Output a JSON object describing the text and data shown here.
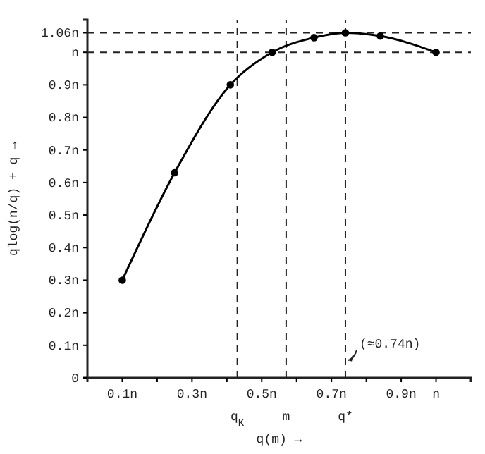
{
  "chart_data": {
    "type": "line",
    "xlabel": "q(m) →",
    "ylabel": "qlog(n/q) + q →",
    "x": [
      0.1,
      0.25,
      0.41,
      0.53,
      0.65,
      0.74,
      0.84,
      1.0
    ],
    "values": [
      0.3,
      0.63,
      0.9,
      1.0,
      1.045,
      1.06,
      1.05,
      1.0
    ],
    "color": "#000000",
    "marker": "circle",
    "line_style": "solid",
    "grid": false,
    "xlim": [
      0,
      1.1
    ],
    "ylim": [
      0,
      1.1
    ],
    "xticks": [
      {
        "value": 0.1,
        "label": "0.1n"
      },
      {
        "value": 0.2,
        "label": null
      },
      {
        "value": 0.3,
        "label": "0.3n"
      },
      {
        "value": 0.4,
        "label": null
      },
      {
        "value": 0.5,
        "label": "0.5n"
      },
      {
        "value": 0.6,
        "label": null
      },
      {
        "value": 0.7,
        "label": "0.7n"
      },
      {
        "value": 0.8,
        "label": null
      },
      {
        "value": 0.9,
        "label": "0.9n"
      },
      {
        "value": 1.0,
        "label": "n"
      }
    ],
    "yticks": [
      0,
      {
        "value": 0.1,
        "label": "0.1n"
      },
      {
        "value": 0.2,
        "label": "0.2n"
      },
      {
        "value": 0.3,
        "label": "0.3n"
      },
      {
        "value": 0.4,
        "label": "0.4n"
      },
      {
        "value": 0.5,
        "label": "0.5n"
      },
      {
        "value": 0.6,
        "label": "0.6n"
      },
      {
        "value": 0.7,
        "label": "0.7n"
      },
      {
        "value": 0.8,
        "label": "0.8n"
      },
      {
        "value": 0.9,
        "label": "0.9n"
      },
      {
        "value": 1,
        "label": "n"
      },
      {
        "value": 1.06,
        "label": "1.06n"
      }
    ],
    "ref_lines": [
      {
        "axis": "y",
        "value": 1.06,
        "label": null,
        "line_style": "dashed"
      },
      {
        "axis": "y",
        "value": 1.0,
        "label": null,
        "line_style": "dashed"
      },
      {
        "axis": "x",
        "value": 0.43,
        "label": "q$_{K}$",
        "line_style": "dashed"
      },
      {
        "axis": "x",
        "value": 0.57,
        "label": "m",
        "line_style": "dashed"
      },
      {
        "axis": "x",
        "value": 0.74,
        "label": "q*",
        "line_style": "dashed"
      }
    ],
    "annotations": [
      {
        "text": "(≈0.74n)",
        "x": 0.74,
        "y": 0.05
      }
    ]
  }
}
